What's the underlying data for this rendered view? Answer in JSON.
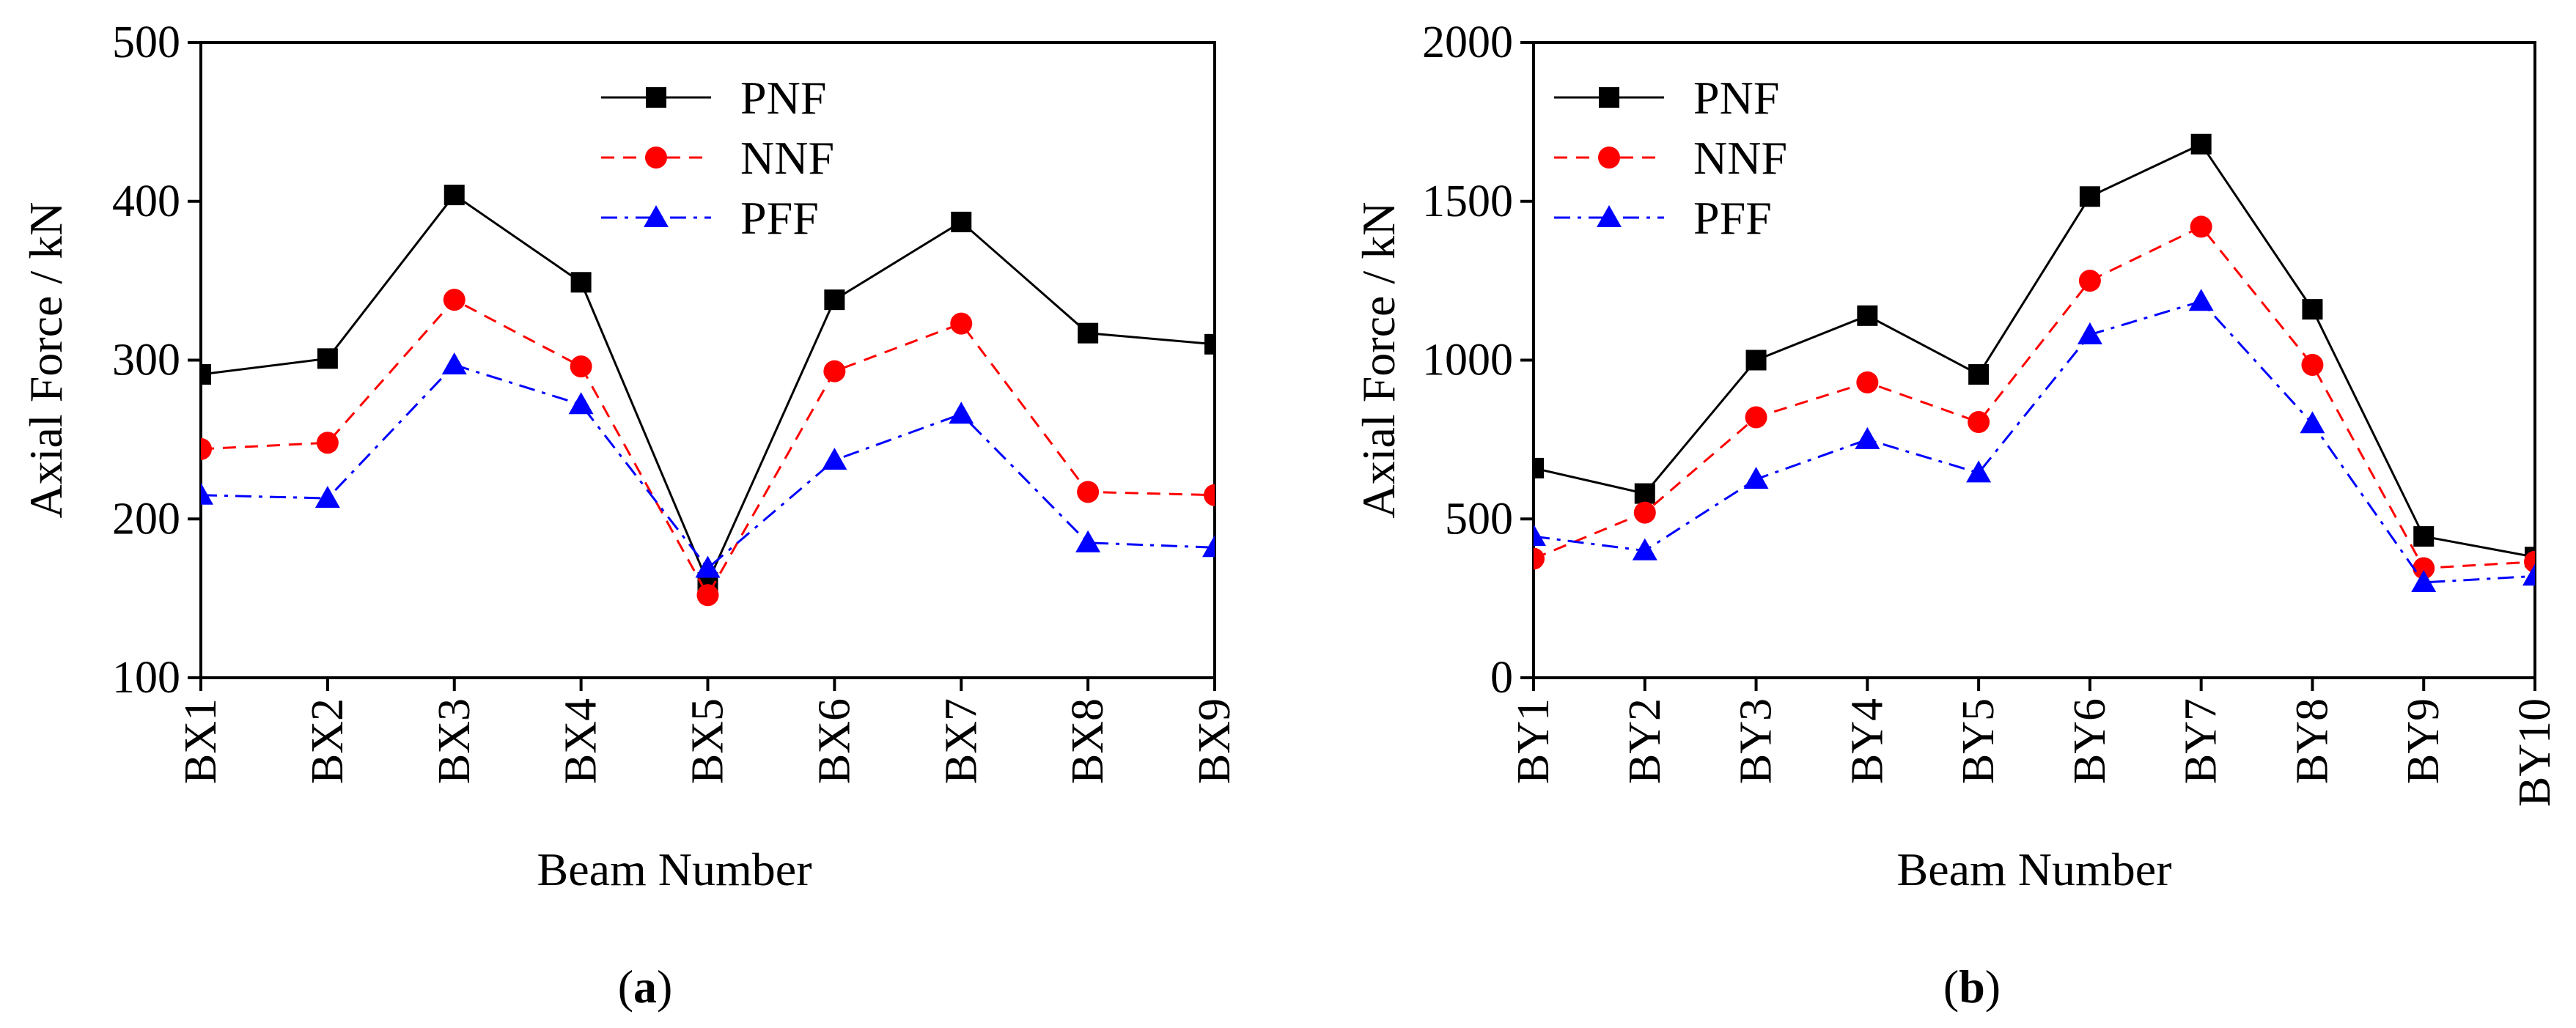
{
  "chart_data": [
    {
      "type": "line",
      "panel_label": "(a)",
      "panel_letter": "a",
      "title": "",
      "xlabel": "Beam Number",
      "ylabel": "Axial Force / kN",
      "ylim": [
        100,
        500
      ],
      "yticks": [
        100,
        200,
        300,
        400,
        500
      ],
      "categories": [
        "BX1",
        "BX2",
        "BX3",
        "BX4",
        "BX5",
        "BX6",
        "BX7",
        "BX8",
        "BX9"
      ],
      "legend_position": "top-center",
      "series": [
        {
          "name": "PNF",
          "color": "#000000",
          "marker": "square",
          "dash": "solid",
          "values": [
            291,
            301,
            404,
            349,
            160,
            338,
            387,
            317,
            310
          ]
        },
        {
          "name": "NNF",
          "color": "#ff0000",
          "marker": "circle",
          "dash": "dashed",
          "values": [
            244,
            248,
            338,
            296,
            152,
            293,
            323,
            217,
            215
          ]
        },
        {
          "name": "PFF",
          "color": "#0000ff",
          "marker": "triangle",
          "dash": "dashdot",
          "values": [
            215,
            213,
            297,
            272,
            169,
            237,
            266,
            185,
            182
          ]
        }
      ]
    },
    {
      "type": "line",
      "panel_label": "(b)",
      "panel_letter": "b",
      "title": "",
      "xlabel": "Beam Number",
      "ylabel": "Axial Force / kN",
      "ylim": [
        0,
        2000
      ],
      "yticks": [
        0,
        500,
        1000,
        1500,
        2000
      ],
      "categories": [
        "BY1",
        "BY2",
        "BY3",
        "BY4",
        "BY5",
        "BY6",
        "BY7",
        "BY8",
        "BY9",
        "BY10"
      ],
      "legend_position": "top-left",
      "series": [
        {
          "name": "PNF",
          "color": "#000000",
          "marker": "square",
          "dash": "solid",
          "values": [
            660,
            580,
            1000,
            1140,
            955,
            1515,
            1680,
            1160,
            445,
            380
          ]
        },
        {
          "name": "NNF",
          "color": "#ff0000",
          "marker": "circle",
          "dash": "dashed",
          "values": [
            375,
            520,
            820,
            930,
            805,
            1250,
            1420,
            985,
            345,
            365
          ]
        },
        {
          "name": "PFF",
          "color": "#0000ff",
          "marker": "triangle",
          "dash": "dashdot",
          "values": [
            445,
            400,
            625,
            750,
            645,
            1080,
            1185,
            800,
            300,
            320
          ]
        }
      ]
    }
  ]
}
